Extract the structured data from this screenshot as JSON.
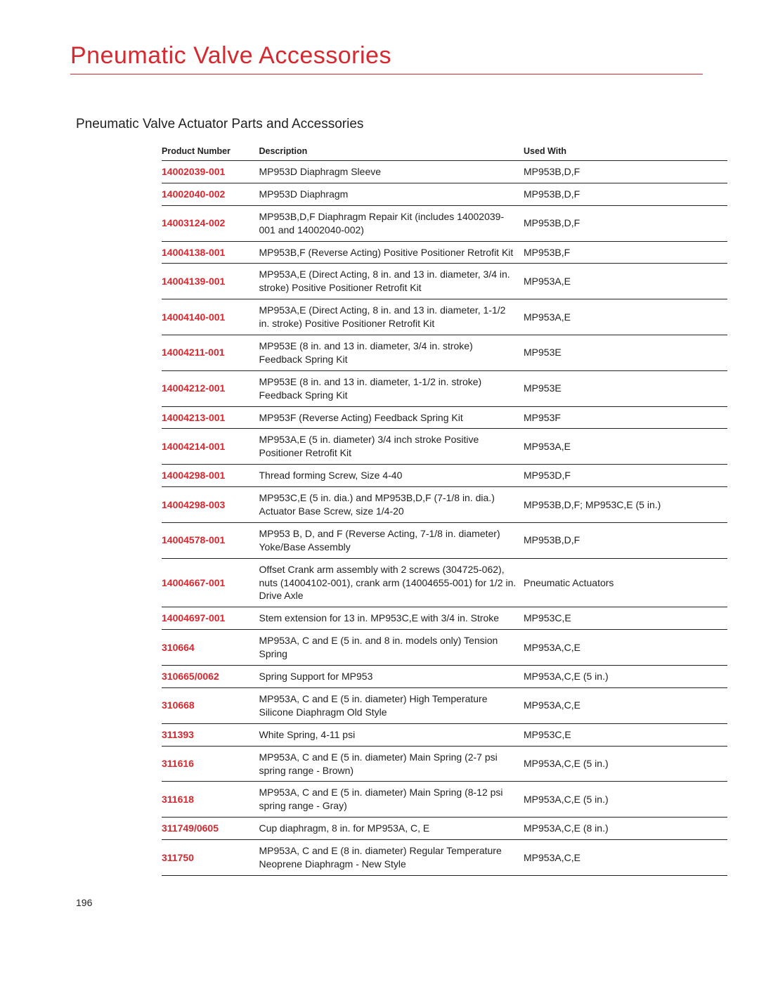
{
  "title": "Pneumatic Valve Accessories",
  "subtitle": "Pneumatic Valve Actuator Parts and Accessories",
  "pageno": "196",
  "columns": [
    "Product Number",
    "Description",
    "Used With"
  ],
  "rows": [
    {
      "pn": "14002039-001",
      "desc": "MP953D Diaphragm Sleeve",
      "used": "MP953B,D,F"
    },
    {
      "pn": "14002040-002",
      "desc": "MP953D Diaphragm",
      "used": "MP953B,D,F"
    },
    {
      "pn": "14003124-002",
      "desc": "MP953B,D,F Diaphragm Repair Kit (includes 14002039-001 and 14002040-002)",
      "used": "MP953B,D,F"
    },
    {
      "pn": "14004138-001",
      "desc": "MP953B,F (Reverse Acting) Positive Positioner Retrofit Kit",
      "used": "MP953B,F"
    },
    {
      "pn": "14004139-001",
      "desc": "MP953A,E (Direct Acting, 8 in. and 13 in. diameter, 3/4 in. stroke) Positive Positioner Retrofit Kit",
      "used": "MP953A,E"
    },
    {
      "pn": "14004140-001",
      "desc": "MP953A,E (Direct Acting, 8 in. and 13 in. diameter, 1-1/2 in. stroke) Positive Positioner Retrofit Kit",
      "used": "MP953A,E"
    },
    {
      "pn": "14004211-001",
      "desc": "MP953E (8 in. and 13 in. diameter, 3/4 in. stroke) Feedback Spring Kit",
      "used": "MP953E"
    },
    {
      "pn": "14004212-001",
      "desc": "MP953E (8 in. and 13 in. diameter, 1-1/2 in. stroke) Feedback Spring Kit",
      "used": "MP953E"
    },
    {
      "pn": "14004213-001",
      "desc": "MP953F (Reverse Acting) Feedback Spring Kit",
      "used": "MP953F"
    },
    {
      "pn": "14004214-001",
      "desc": "MP953A,E (5 in. diameter) 3/4 inch stroke Positive Positioner Retrofit Kit",
      "used": "MP953A,E"
    },
    {
      "pn": "14004298-001",
      "desc": "Thread forming Screw, Size 4-40",
      "used": "MP953D,F"
    },
    {
      "pn": "14004298-003",
      "desc": "MP953C,E (5 in. dia.) and MP953B,D,F (7-1/8 in. dia.) Actuator Base Screw, size 1/4-20",
      "used": "MP953B,D,F; MP953C,E (5 in.)"
    },
    {
      "pn": "14004578-001",
      "desc": "MP953 B, D, and F (Reverse Acting, 7-1/8 in. diameter) Yoke/Base Assembly",
      "used": "MP953B,D,F"
    },
    {
      "pn": "14004667-001",
      "desc": "Offset Crank arm assembly with 2 screws (304725-062), nuts (14004102-001), crank arm (14004655-001) for 1/2 in. Drive Axle",
      "used": "Pneumatic Actuators"
    },
    {
      "pn": "14004697-001",
      "desc": "Stem extension for 13 in. MP953C,E with 3/4 in. Stroke",
      "used": "MP953C,E"
    },
    {
      "pn": "310664",
      "desc": "MP953A, C and E (5 in. and 8 in. models only) Tension Spring",
      "used": "MP953A,C,E"
    },
    {
      "pn": "310665/0062",
      "desc": "Spring Support for MP953",
      "used": "MP953A,C,E (5 in.)"
    },
    {
      "pn": "310668",
      "desc": "MP953A, C and E (5 in. diameter) High Temperature Silicone Diaphragm Old Style",
      "used": "MP953A,C,E"
    },
    {
      "pn": "311393",
      "desc": "White Spring, 4-11 psi",
      "used": "MP953C,E"
    },
    {
      "pn": "311616",
      "desc": "MP953A, C and E (5 in. diameter) Main Spring (2-7 psi spring range - Brown)",
      "used": "MP953A,C,E (5 in.)"
    },
    {
      "pn": "311618",
      "desc": "MP953A, C and E (5 in. diameter) Main Spring (8-12 psi spring range - Gray)",
      "used": "MP953A,C,E (5 in.)"
    },
    {
      "pn": "311749/0605",
      "desc": "Cup diaphragm, 8 in. for MP953A, C, E",
      "used": "MP953A,C,E (8 in.)"
    },
    {
      "pn": "311750",
      "desc": "MP953A, C and E (8 in. diameter) Regular Temperature Neoprene Diaphragm - New Style",
      "used": "MP953A,C,E"
    }
  ]
}
